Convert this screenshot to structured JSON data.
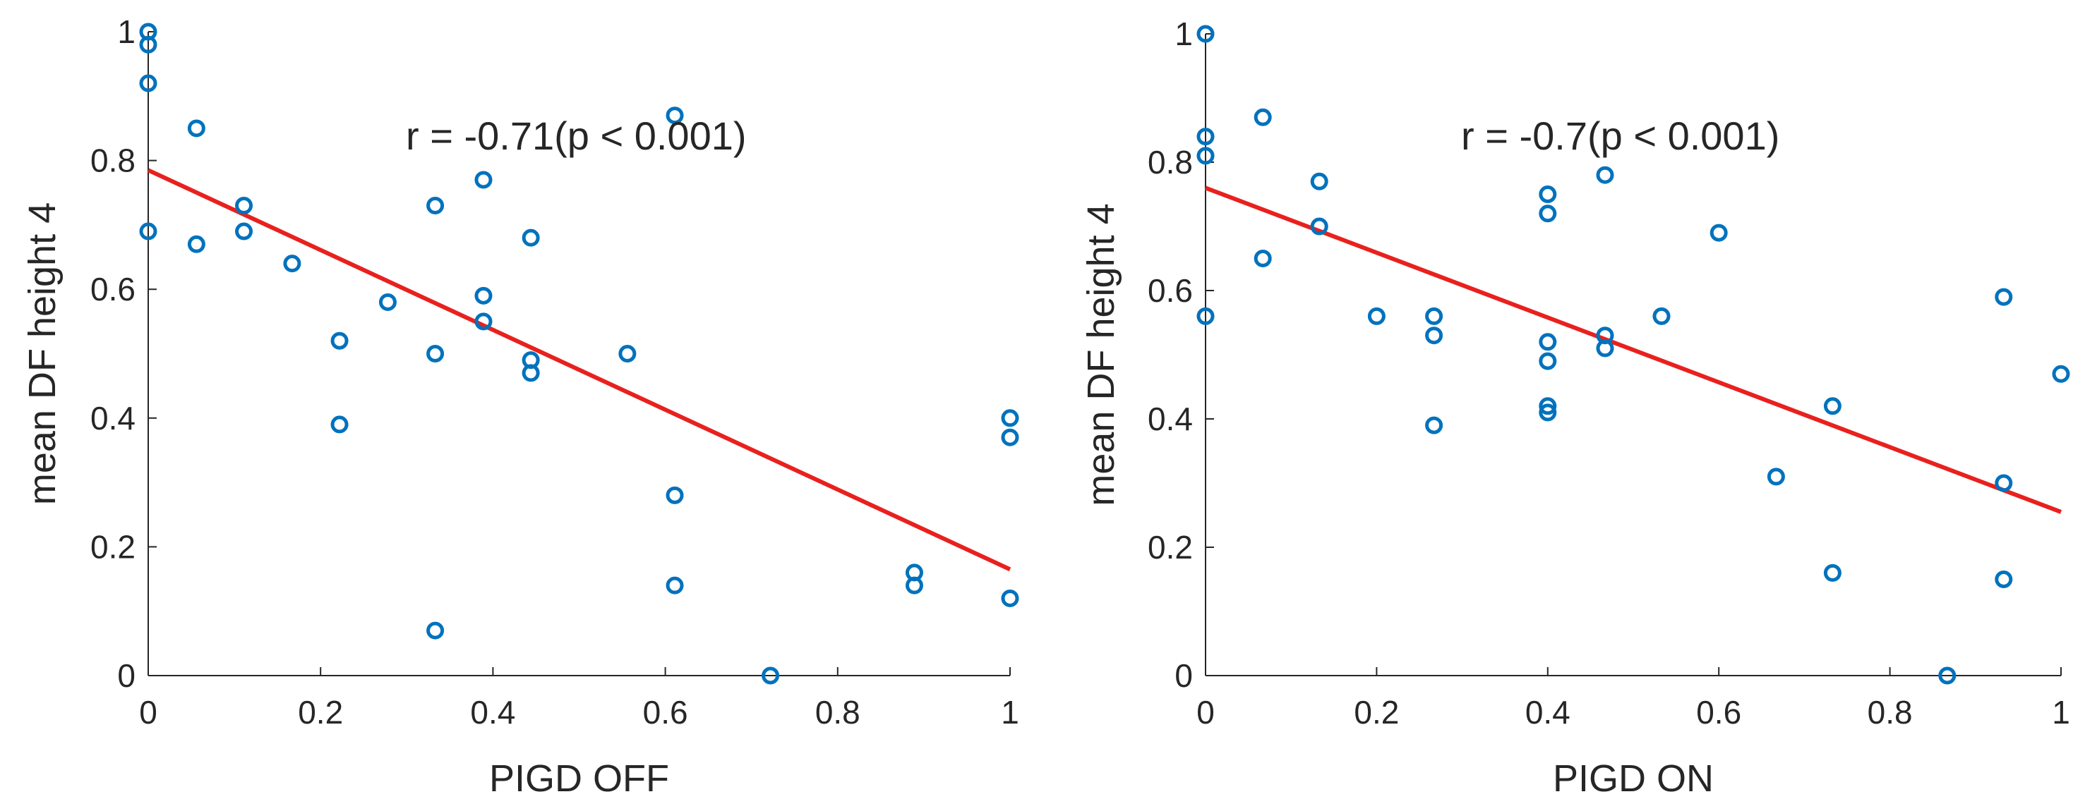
{
  "chart_data": [
    {
      "type": "scatter",
      "xlabel": "PIGD OFF",
      "ylabel": "mean DF height 4",
      "xlim": [
        0,
        1
      ],
      "ylim": [
        0,
        1
      ],
      "xticks": [
        0,
        0.2,
        0.4,
        0.6,
        0.8,
        1
      ],
      "yticks": [
        0,
        0.2,
        0.4,
        0.6,
        0.8,
        1
      ],
      "xtick_labels": [
        "0",
        "0.2",
        "0.4",
        "0.6",
        "0.8",
        "1"
      ],
      "ytick_labels": [
        "0",
        "0.2",
        "0.4",
        "0.6",
        "0.8",
        "1"
      ],
      "annotation": "r = -0.71(p < 0.001)",
      "grid": false,
      "marker_color": "#0072BD",
      "fit_color": "#E8211E",
      "points": [
        {
          "x": 0,
          "y": 1.0
        },
        {
          "x": 0,
          "y": 0.98
        },
        {
          "x": 0,
          "y": 0.92
        },
        {
          "x": 0,
          "y": 0.69
        },
        {
          "x": 0.056,
          "y": 0.85
        },
        {
          "x": 0.056,
          "y": 0.67
        },
        {
          "x": 0.111,
          "y": 0.73
        },
        {
          "x": 0.111,
          "y": 0.69
        },
        {
          "x": 0.167,
          "y": 0.64
        },
        {
          "x": 0.222,
          "y": 0.52
        },
        {
          "x": 0.222,
          "y": 0.39
        },
        {
          "x": 0.278,
          "y": 0.58
        },
        {
          "x": 0.333,
          "y": 0.73
        },
        {
          "x": 0.333,
          "y": 0.5
        },
        {
          "x": 0.333,
          "y": 0.07
        },
        {
          "x": 0.389,
          "y": 0.77
        },
        {
          "x": 0.389,
          "y": 0.59
        },
        {
          "x": 0.389,
          "y": 0.55
        },
        {
          "x": 0.444,
          "y": 0.68
        },
        {
          "x": 0.444,
          "y": 0.49
        },
        {
          "x": 0.444,
          "y": 0.47
        },
        {
          "x": 0.556,
          "y": 0.5
        },
        {
          "x": 0.611,
          "y": 0.87
        },
        {
          "x": 0.611,
          "y": 0.28
        },
        {
          "x": 0.611,
          "y": 0.14
        },
        {
          "x": 0.722,
          "y": 0.0
        },
        {
          "x": 0.889,
          "y": 0.16
        },
        {
          "x": 0.889,
          "y": 0.14
        },
        {
          "x": 1.0,
          "y": 0.4
        },
        {
          "x": 1.0,
          "y": 0.37
        },
        {
          "x": 1.0,
          "y": 0.12
        }
      ],
      "fit_line": {
        "x": [
          0,
          1
        ],
        "y": [
          0.785,
          0.165
        ]
      }
    },
    {
      "type": "scatter",
      "xlabel": "PIGD ON",
      "ylabel": "mean DF height 4",
      "xlim": [
        0,
        1
      ],
      "ylim": [
        0,
        1
      ],
      "xticks": [
        0,
        0.2,
        0.4,
        0.6,
        0.8,
        1
      ],
      "yticks": [
        0,
        0.2,
        0.4,
        0.6,
        0.8,
        1
      ],
      "xtick_labels": [
        "0",
        "0.2",
        "0.4",
        "0.6",
        "0.8",
        "1"
      ],
      "ytick_labels": [
        "0",
        "0.2",
        "0.4",
        "0.6",
        "0.8",
        "1"
      ],
      "annotation": "r = -0.7(p < 0.001)",
      "grid": false,
      "marker_color": "#0072BD",
      "fit_color": "#E8211E",
      "points": [
        {
          "x": 0,
          "y": 1.0
        },
        {
          "x": 0,
          "y": 0.84
        },
        {
          "x": 0,
          "y": 0.81
        },
        {
          "x": 0,
          "y": 0.56
        },
        {
          "x": 0.067,
          "y": 0.87
        },
        {
          "x": 0.067,
          "y": 0.65
        },
        {
          "x": 0.133,
          "y": 0.77
        },
        {
          "x": 0.133,
          "y": 0.7
        },
        {
          "x": 0.2,
          "y": 0.56
        },
        {
          "x": 0.267,
          "y": 0.56
        },
        {
          "x": 0.267,
          "y": 0.53
        },
        {
          "x": 0.267,
          "y": 0.39
        },
        {
          "x": 0.4,
          "y": 0.75
        },
        {
          "x": 0.4,
          "y": 0.72
        },
        {
          "x": 0.4,
          "y": 0.52
        },
        {
          "x": 0.4,
          "y": 0.49
        },
        {
          "x": 0.4,
          "y": 0.42
        },
        {
          "x": 0.4,
          "y": 0.41
        },
        {
          "x": 0.467,
          "y": 0.78
        },
        {
          "x": 0.467,
          "y": 0.53
        },
        {
          "x": 0.467,
          "y": 0.51
        },
        {
          "x": 0.533,
          "y": 0.56
        },
        {
          "x": 0.6,
          "y": 0.69
        },
        {
          "x": 0.667,
          "y": 0.31
        },
        {
          "x": 0.733,
          "y": 0.42
        },
        {
          "x": 0.733,
          "y": 0.16
        },
        {
          "x": 0.867,
          "y": 0.0
        },
        {
          "x": 0.933,
          "y": 0.59
        },
        {
          "x": 0.933,
          "y": 0.3
        },
        {
          "x": 0.933,
          "y": 0.15
        },
        {
          "x": 1.0,
          "y": 0.47
        }
      ],
      "fit_line": {
        "x": [
          0,
          1
        ],
        "y": [
          0.76,
          0.255
        ]
      }
    }
  ]
}
